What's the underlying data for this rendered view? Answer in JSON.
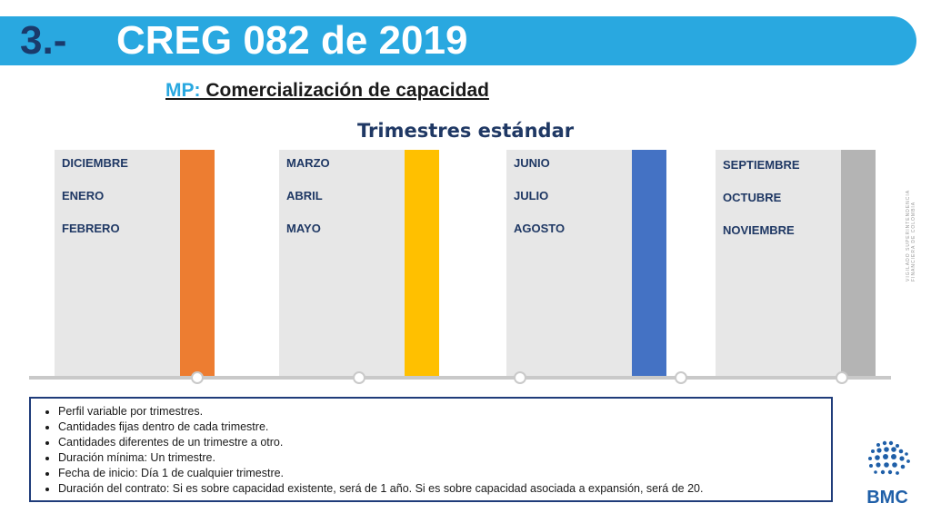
{
  "header": {
    "number": "3.-",
    "title": "CREG 082 de 2019"
  },
  "subtitle": {
    "prefix": "MP:",
    "text": " Comercialización de capacidad"
  },
  "section_title": "Trimestres estándar",
  "quarters": [
    {
      "months": [
        "DICIEMBRE",
        "ENERO",
        "FEBRERO"
      ],
      "color": "#ed7d31"
    },
    {
      "months": [
        "MARZO",
        "ABRIL",
        "MAYO"
      ],
      "color": "#ffc000"
    },
    {
      "months": [
        "JUNIO",
        "JULIO",
        "AGOSTO"
      ],
      "color": "#4472c4"
    },
    {
      "months": [
        "SEPTIEMBRE",
        "OCTUBRE",
        "NOVIEMBRE"
      ],
      "color": "#b4b4b4"
    }
  ],
  "notes": [
    "Perfil variable por trimestres.",
    "Cantidades fijas dentro de cada trimestre.",
    "Cantidades diferentes de un trimestre a otro.",
    "Duración mínima: Un trimestre.",
    "Fecha de inicio: Día 1 de cualquier trimestre.",
    "Duración del contrato: Si es sobre capacidad existente, será de 1 año. Si es sobre capacidad asociada a expansión, será de 20."
  ],
  "side_watermark": "VIGILADO SUPERINTENDENCIA FINANCIERA DE COLOMBIA",
  "logo": {
    "text": "BMC",
    "color": "#1f5fa8",
    "icon": "bmc-dot-globe-icon"
  }
}
